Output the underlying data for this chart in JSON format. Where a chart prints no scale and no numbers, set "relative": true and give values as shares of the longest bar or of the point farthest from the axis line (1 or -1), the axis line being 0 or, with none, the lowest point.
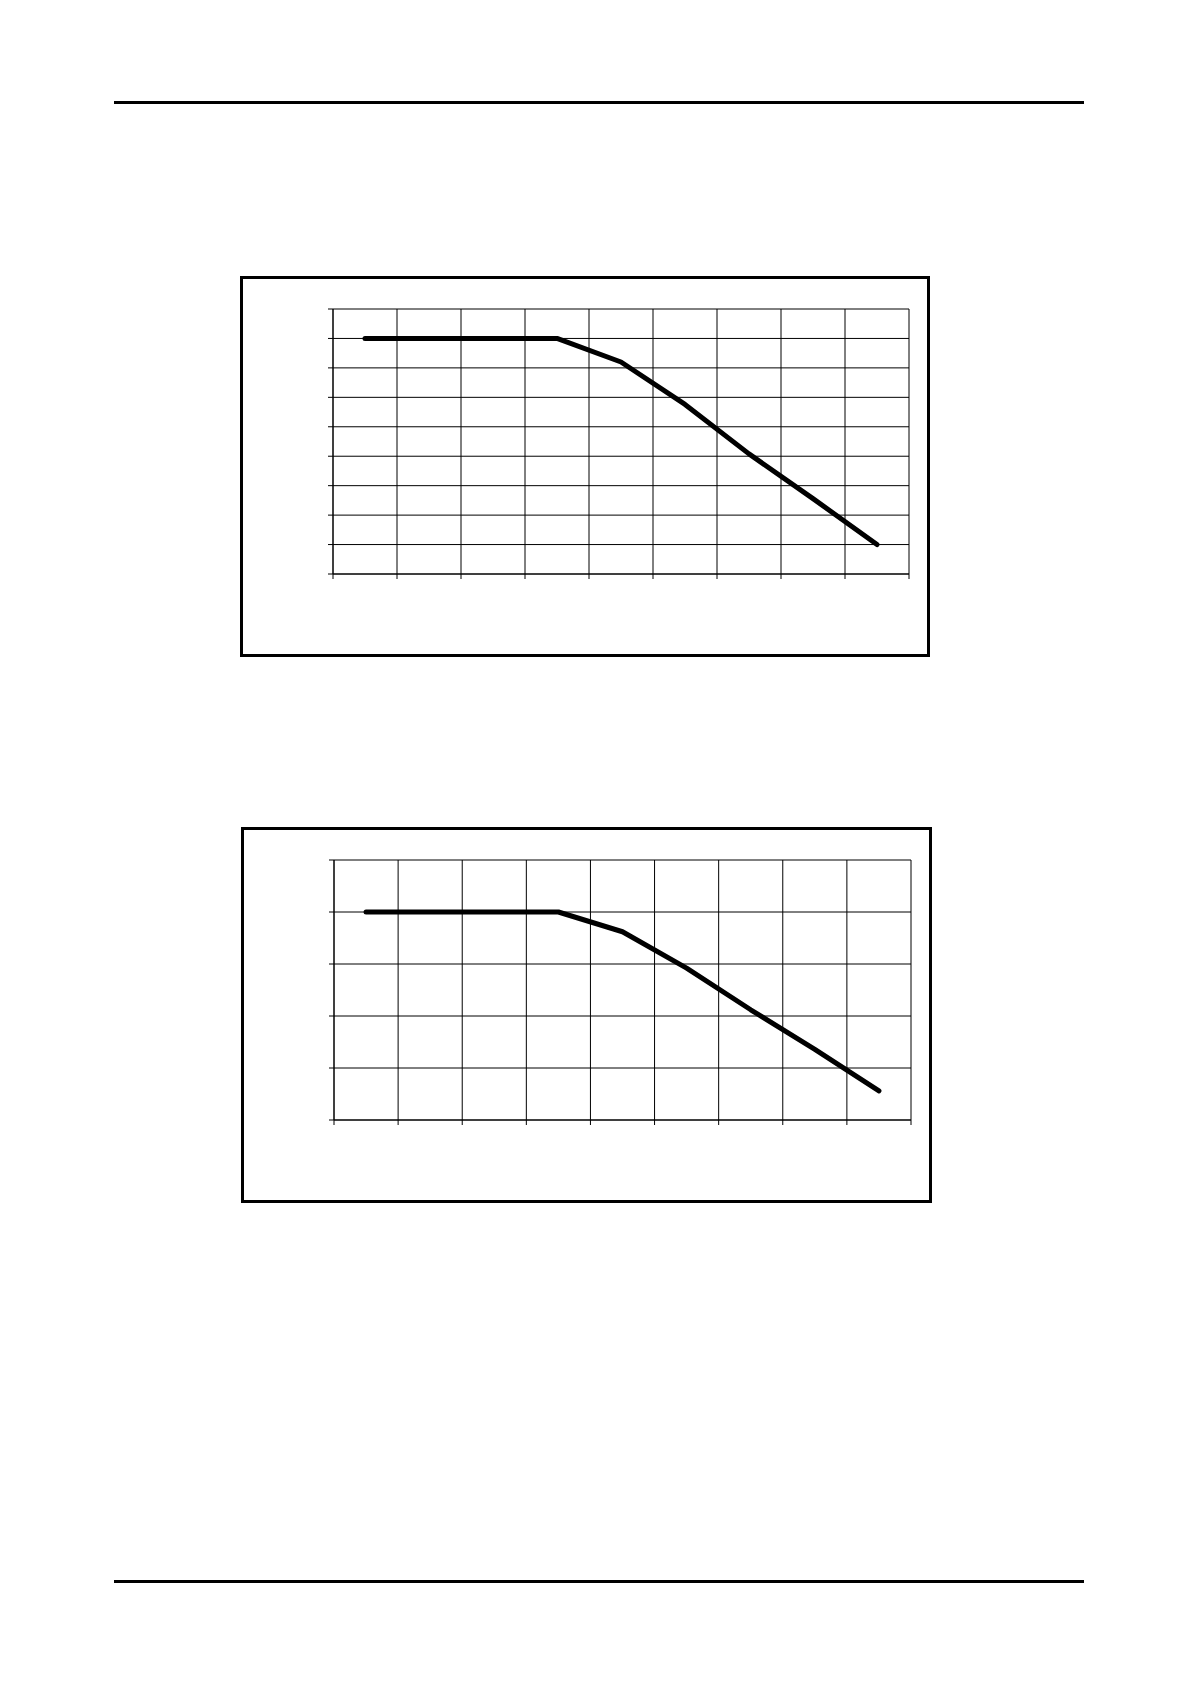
{
  "chart_data": [
    {
      "type": "line",
      "relative": true,
      "categories": [
        null,
        null,
        null,
        null,
        null,
        null,
        null,
        null,
        null
      ],
      "grid": true,
      "marker": "none",
      "line_style": "solid",
      "series": [
        {
          "color": "#000000",
          "values": [
            1,
            1,
            1,
            1,
            0.9,
            0.72,
            0.51,
            0.32,
            0.125
          ]
        }
      ]
    },
    {
      "type": "line",
      "relative": true,
      "categories": [
        null,
        null,
        null,
        null,
        null,
        null,
        null,
        null,
        null
      ],
      "grid": true,
      "marker": "none",
      "line_style": "solid",
      "series": [
        {
          "color": "#000000",
          "values": [
            1,
            1,
            1,
            1,
            0.905,
            0.73,
            0.53,
            0.34,
            0.14
          ]
        }
      ]
    }
  ]
}
